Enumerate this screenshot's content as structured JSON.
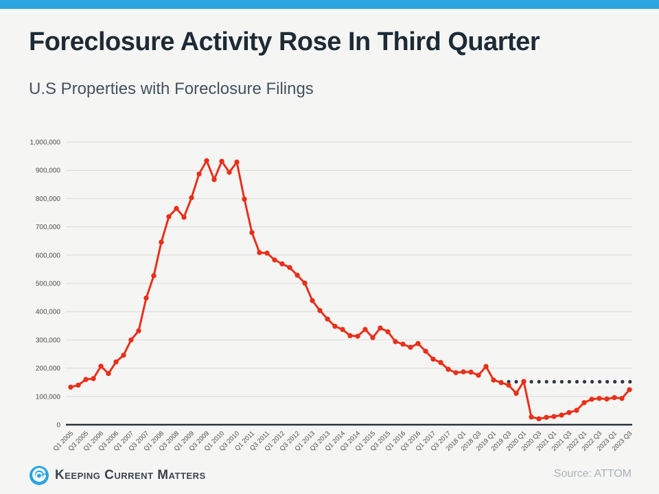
{
  "page": {
    "top_bar_color": "#2aa5df",
    "background_color": "#f5f5f4"
  },
  "header": {
    "title": "Foreclosure Activity Rose In Third Quarter",
    "title_color": "#1d2b36",
    "subtitle": "U.S Properties with Foreclosure Filings",
    "subtitle_color": "#42525e"
  },
  "chart_data": {
    "type": "line",
    "title": "U.S Properties with Foreclosure Filings",
    "xlabel": "",
    "ylabel": "",
    "x_start": "Q1 2005",
    "x_end": "Q3 2023",
    "frequency": "quarterly",
    "ylim": [
      0,
      1000000
    ],
    "grid": "horizontal",
    "legend": "none",
    "series_name": "U.S properties with foreclosure filings",
    "values": [
      133000,
      140000,
      160000,
      163000,
      207000,
      181000,
      222000,
      246000,
      300000,
      332000,
      448000,
      527000,
      646000,
      736000,
      765000,
      734000,
      803000,
      887000,
      934000,
      867000,
      932000,
      893000,
      929000,
      798000,
      680000,
      609000,
      607000,
      583000,
      569000,
      556000,
      529000,
      501000,
      439000,
      404000,
      374000,
      348000,
      337000,
      315000,
      313000,
      337000,
      308000,
      342000,
      329000,
      294000,
      285000,
      274000,
      287000,
      260000,
      232000,
      220000,
      196000,
      184000,
      187000,
      186000,
      175000,
      206000,
      158000,
      149000,
      140000,
      111000,
      153000,
      27000,
      21000,
      26000,
      29000,
      34000,
      43000,
      51000,
      78000,
      90000,
      93000,
      91000,
      96000,
      93000,
      124000
    ],
    "x_tick_labels": [
      "Q1 2005",
      "Q3 2005",
      "Q1 2006",
      "Q3 2006",
      "Q1 2007",
      "Q3 2007",
      "Q1 2008",
      "Q3 2008",
      "Q1 2009",
      "Q3 2009",
      "Q1 2010",
      "Q3 2010",
      "Q1 2011",
      "Q3 2011",
      "Q1 2012",
      "Q3 2012",
      "Q1 2013",
      "Q3 2013",
      "Q1 2014",
      "Q3 2014",
      "Q1 2015",
      "Q3 2015",
      "Q1 2016",
      "Q3 2016",
      "Q1 2017",
      "Q3 2017",
      "2018 Q1",
      "2018 Q3",
      "2019 Q1",
      "2019 Q3",
      "2020 Q1",
      "2020 Q3",
      "2021 Q1",
      "2021 Q3",
      "2022 Q1",
      "2022 Q3",
      "2023 Q1",
      "2023 Q3"
    ],
    "y_tick_labels": [
      "1,000,000",
      "900,000",
      "800,000",
      "700,000",
      "600,000",
      "500,000",
      "400,000",
      "300,000",
      "200,000",
      "100,000",
      "0"
    ],
    "reference_line": {
      "style": "dotted",
      "value": 152000,
      "start_index": 58,
      "color": "#2d3843"
    },
    "line_color": "#e8301a",
    "marker_color": "#e8301a",
    "axis_line_color": "#28323d",
    "gridline_color": "#dadada",
    "tick_text_color": "#4c4c4c"
  },
  "footer": {
    "logo_icon": "kcm-swirl-icon",
    "logo_icon_color": "#2aa5df",
    "logo_text": "Keeping Current Matters",
    "logo_text_color": "#39444d",
    "source_text": "Source: ATTOM",
    "source_text_color": "#a9b2b9"
  }
}
